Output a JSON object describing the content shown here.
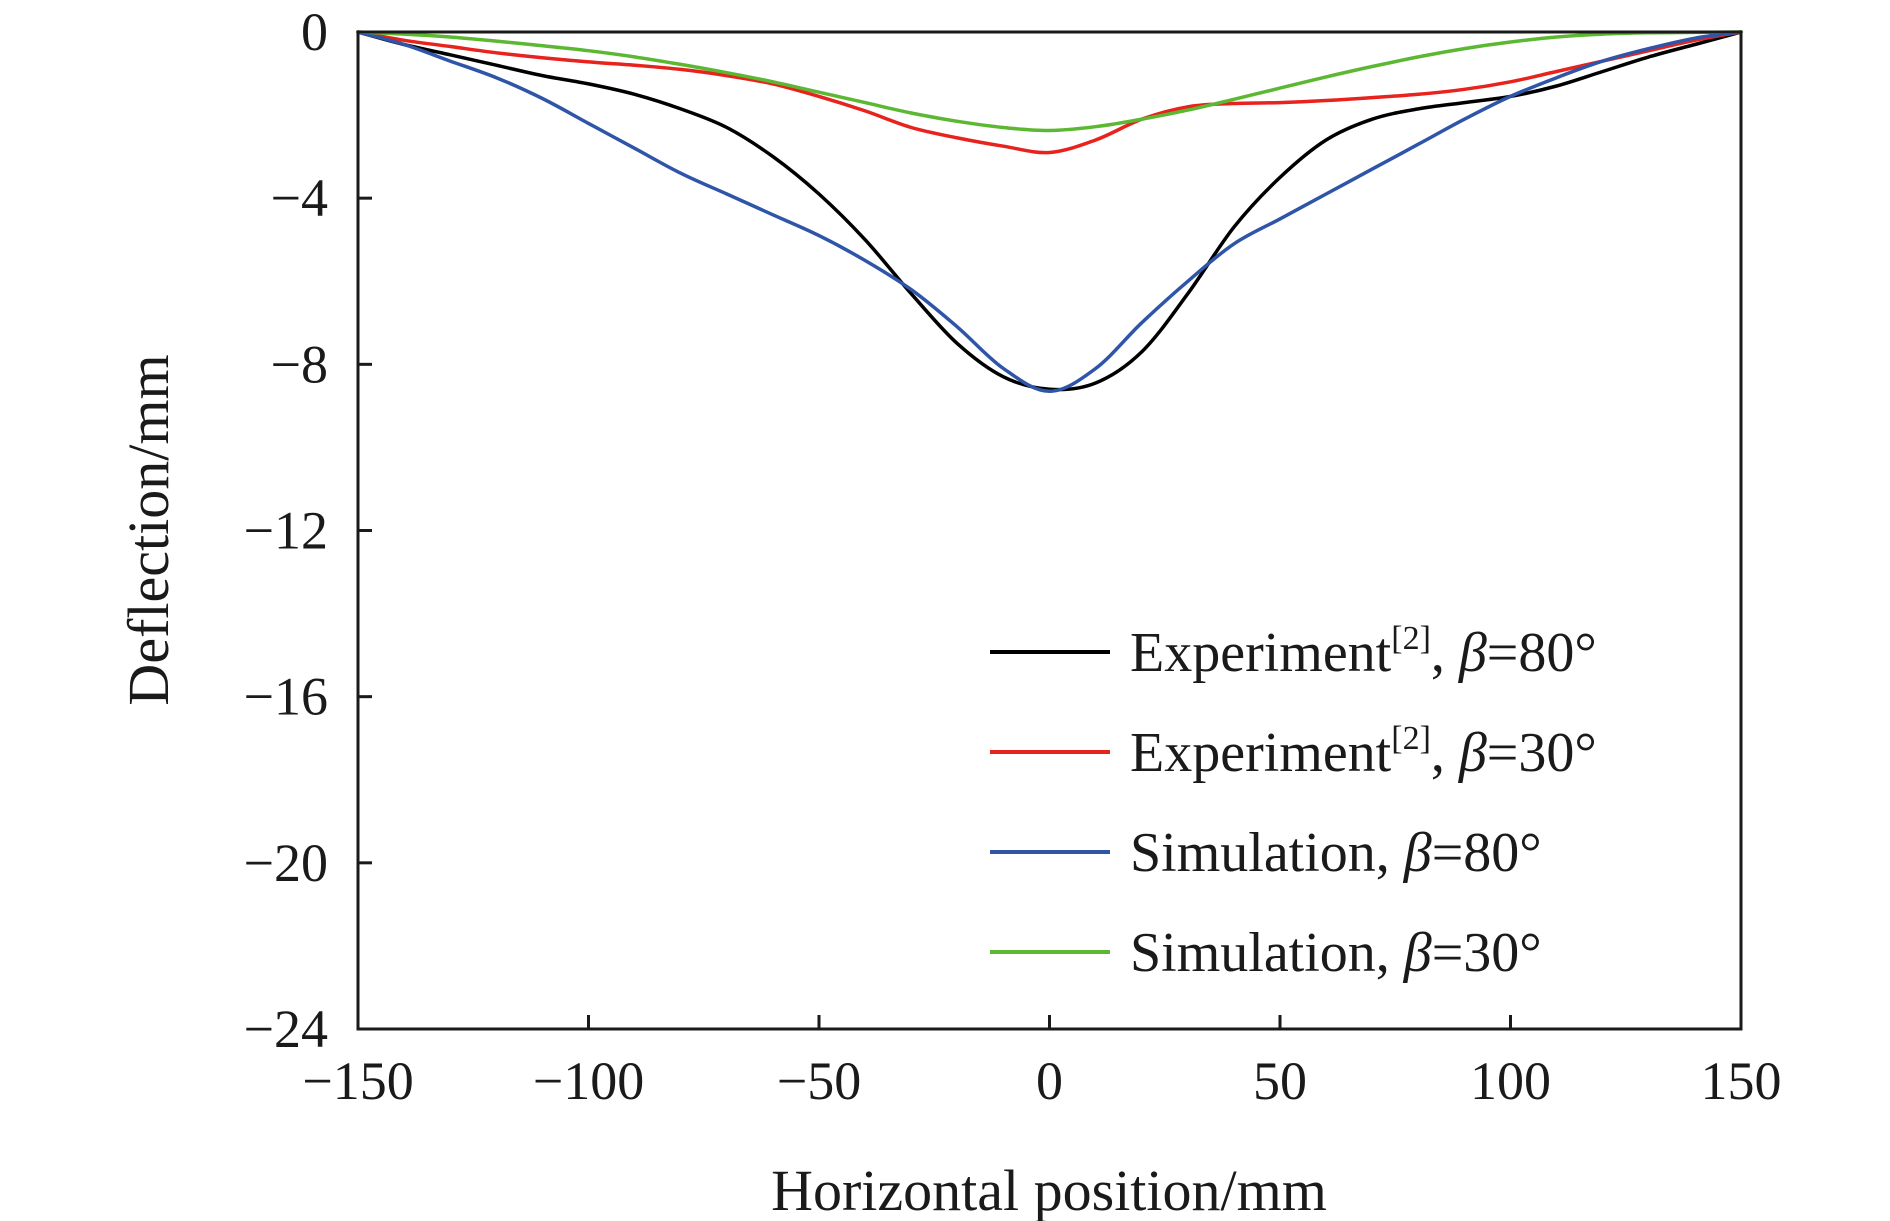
{
  "chart_data": {
    "type": "line",
    "xlabel": "Horizontal position/mm",
    "ylabel": "Deflection/mm",
    "xlim": [
      -150,
      150
    ],
    "ylim": [
      -24,
      0
    ],
    "xticks": [
      -150,
      -100,
      -50,
      0,
      50,
      100,
      150
    ],
    "yticks": [
      0,
      -4,
      -8,
      -12,
      -16,
      -20,
      -24
    ],
    "xtick_labels": [
      "−150",
      "−100",
      "−50",
      "0",
      "50",
      "100",
      "150"
    ],
    "ytick_labels": [
      "0",
      "−4",
      "−8",
      "−12",
      "−16",
      "−20",
      "−24"
    ],
    "grid": false,
    "legend_position": "lower-right",
    "series": [
      {
        "name": "Experiment[2], β=80°",
        "legend": {
          "base": "Experiment",
          "sup": "[2]",
          "sep": ", ",
          "symbol": "β",
          "value": "=80°"
        },
        "color": "#000000",
        "x": [
          -150,
          -140,
          -130,
          -120,
          -110,
          -100,
          -90,
          -80,
          -70,
          -60,
          -50,
          -40,
          -30,
          -20,
          -10,
          0,
          10,
          20,
          30,
          40,
          50,
          60,
          70,
          80,
          90,
          100,
          110,
          120,
          130,
          140,
          150
        ],
        "y": [
          0,
          -0.3,
          -0.55,
          -0.8,
          -1.05,
          -1.25,
          -1.5,
          -1.85,
          -2.3,
          -3.0,
          -3.9,
          -5.0,
          -6.3,
          -7.5,
          -8.3,
          -8.6,
          -8.45,
          -7.7,
          -6.3,
          -4.7,
          -3.5,
          -2.6,
          -2.1,
          -1.85,
          -1.7,
          -1.55,
          -1.3,
          -0.95,
          -0.6,
          -0.3,
          0
        ]
      },
      {
        "name": "Experiment[2], β=30°",
        "legend": {
          "base": "Experiment",
          "sup": "[2]",
          "sep": ", ",
          "symbol": "β",
          "value": "=30°"
        },
        "color": "#e8221c",
        "x": [
          -150,
          -140,
          -130,
          -120,
          -110,
          -100,
          -90,
          -80,
          -70,
          -60,
          -50,
          -40,
          -30,
          -20,
          -10,
          0,
          10,
          20,
          30,
          40,
          50,
          60,
          70,
          80,
          90,
          100,
          110,
          120,
          130,
          140,
          150
        ],
        "y": [
          0,
          -0.2,
          -0.35,
          -0.5,
          -0.62,
          -0.72,
          -0.8,
          -0.9,
          -1.05,
          -1.25,
          -1.55,
          -1.9,
          -2.3,
          -2.55,
          -2.75,
          -2.9,
          -2.6,
          -2.1,
          -1.8,
          -1.72,
          -1.7,
          -1.65,
          -1.58,
          -1.5,
          -1.38,
          -1.2,
          -0.95,
          -0.7,
          -0.45,
          -0.2,
          0
        ]
      },
      {
        "name": "Simulation, β=80°",
        "legend": {
          "base": "Simulation",
          "sup": "",
          "sep": ", ",
          "symbol": "β",
          "value": "=80°"
        },
        "color": "#2e55a8",
        "x": [
          -150,
          -140,
          -130,
          -120,
          -110,
          -100,
          -90,
          -80,
          -70,
          -60,
          -50,
          -40,
          -30,
          -20,
          -10,
          0,
          10,
          20,
          30,
          40,
          50,
          60,
          70,
          80,
          90,
          100,
          110,
          120,
          130,
          140,
          150
        ],
        "y": [
          0,
          -0.3,
          -0.7,
          -1.1,
          -1.6,
          -2.2,
          -2.8,
          -3.4,
          -3.9,
          -4.4,
          -4.9,
          -5.5,
          -6.2,
          -7.1,
          -8.1,
          -8.65,
          -8.1,
          -7.0,
          -6.0,
          -5.1,
          -4.5,
          -3.9,
          -3.3,
          -2.7,
          -2.1,
          -1.55,
          -1.1,
          -0.7,
          -0.4,
          -0.15,
          0
        ]
      },
      {
        "name": "Simulation, β=30°",
        "legend": {
          "base": "Simulation",
          "sup": "",
          "sep": ", ",
          "symbol": "β",
          "value": "=30°"
        },
        "color": "#5cb833",
        "x": [
          -150,
          -140,
          -130,
          -120,
          -110,
          -100,
          -90,
          -80,
          -70,
          -60,
          -50,
          -40,
          -30,
          -20,
          -10,
          0,
          10,
          20,
          30,
          40,
          50,
          60,
          70,
          80,
          90,
          100,
          110,
          120,
          130,
          140,
          150
        ],
        "y": [
          0,
          -0.05,
          -0.12,
          -0.22,
          -0.33,
          -0.45,
          -0.6,
          -0.78,
          -0.98,
          -1.2,
          -1.45,
          -1.7,
          -1.95,
          -2.15,
          -2.3,
          -2.37,
          -2.28,
          -2.1,
          -1.88,
          -1.62,
          -1.35,
          -1.08,
          -0.83,
          -0.6,
          -0.4,
          -0.24,
          -0.12,
          -0.05,
          -0.02,
          -0.01,
          0
        ]
      }
    ]
  }
}
